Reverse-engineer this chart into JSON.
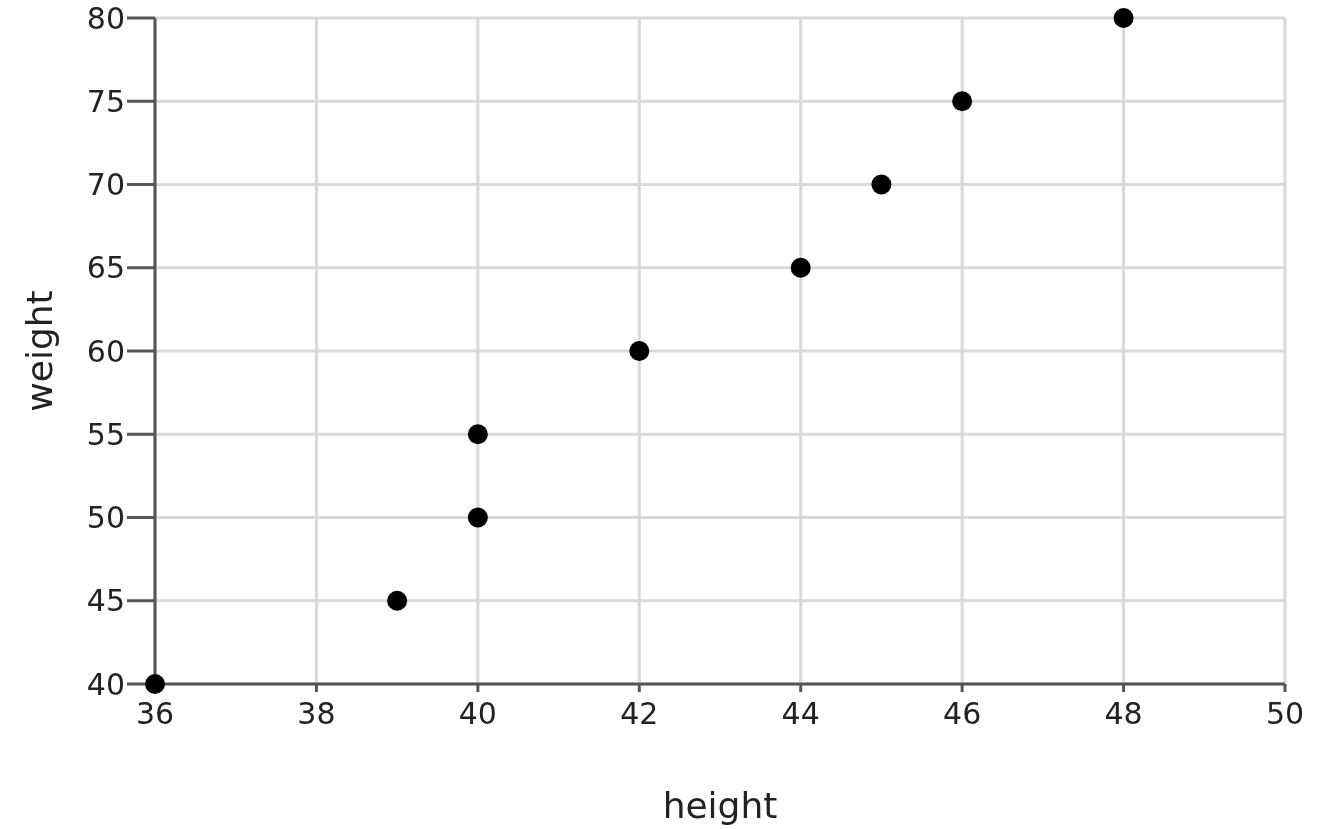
{
  "chart_data": {
    "type": "scatter",
    "xlabel": "height",
    "ylabel": "weight",
    "x": [
      36,
      39,
      40,
      40,
      42,
      44,
      45,
      46,
      48
    ],
    "values": [
      40,
      45,
      50,
      55,
      60,
      65,
      70,
      75,
      80
    ],
    "color": "#000000",
    "marker": "circle",
    "xlim": [
      36,
      50
    ],
    "xticks": [
      36,
      38,
      40,
      42,
      44,
      46,
      48,
      50
    ],
    "ylim": [
      40,
      80
    ],
    "yticks": [
      40,
      45,
      50,
      55,
      60,
      65,
      70,
      75,
      80
    ],
    "grid": true
  }
}
